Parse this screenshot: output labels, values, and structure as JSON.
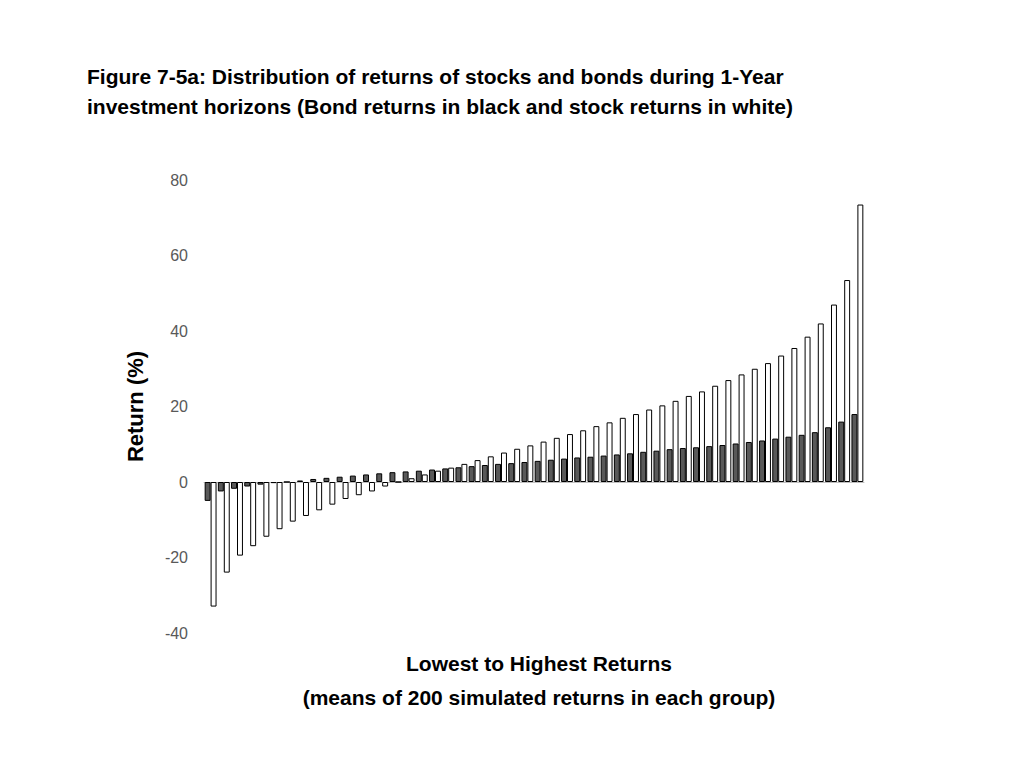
{
  "chart_data": {
    "type": "bar",
    "title": "Figure 7-5a: Distribution of returns of stocks and bonds during 1-Year\ninvestment horizons (Bond returns in black and stock returns in white)",
    "x_label": "Lowest to Highest Returns\n(means of 200 simulated returns in each group)",
    "y_label": "Return (%)",
    "categories": [
      null,
      null,
      null,
      null,
      null,
      null,
      null,
      null,
      null,
      null,
      null,
      null,
      null,
      null,
      null,
      null,
      null,
      null,
      null,
      null,
      null,
      null,
      null,
      null,
      null,
      null,
      null,
      null,
      null,
      null,
      null,
      null,
      null,
      null,
      null,
      null,
      null,
      null,
      null,
      null,
      null,
      null,
      null,
      null,
      null,
      null,
      null,
      null,
      null,
      null
    ],
    "series": [
      {
        "color": "#595959",
        "values": [
          -5,
          -2.5,
          -1.8,
          -1.2,
          -0.7,
          -0.3,
          0,
          0.4,
          0.8,
          1.1,
          1.4,
          1.7,
          2,
          2.3,
          2.6,
          2.8,
          3,
          3.3,
          3.6,
          3.9,
          4.2,
          4.5,
          4.8,
          5,
          5.3,
          5.6,
          5.9,
          6.2,
          6.5,
          6.7,
          7,
          7.3,
          7.6,
          8,
          8.3,
          8.7,
          9,
          9.2,
          9.5,
          9.8,
          10.2,
          10.6,
          11,
          11.5,
          12,
          12.5,
          13.2,
          14.5,
          16,
          18
        ]
      },
      {
        "color": "#ffffff",
        "values": [
          -33,
          -24,
          -19.5,
          -17,
          -14.5,
          -12.5,
          -10.5,
          -9,
          -7.5,
          -6,
          -4.5,
          -3.5,
          -2.5,
          -1.2,
          0,
          1,
          2,
          3,
          3.8,
          4.8,
          5.8,
          6.8,
          7.8,
          8.8,
          9.7,
          10.7,
          11.7,
          12.7,
          13.7,
          14.8,
          15.8,
          17,
          18,
          19.2,
          20.3,
          21.5,
          22.8,
          24,
          25.5,
          27,
          28.5,
          30,
          31.5,
          33.5,
          35.5,
          38.5,
          42,
          47,
          53.5,
          73.5
        ]
      }
    ],
    "ylim": [
      -40,
      80
    ],
    "yticks": [
      -40,
      -20,
      0,
      20,
      40,
      60,
      80
    ],
    "grid": false,
    "tick_labels": "y"
  }
}
